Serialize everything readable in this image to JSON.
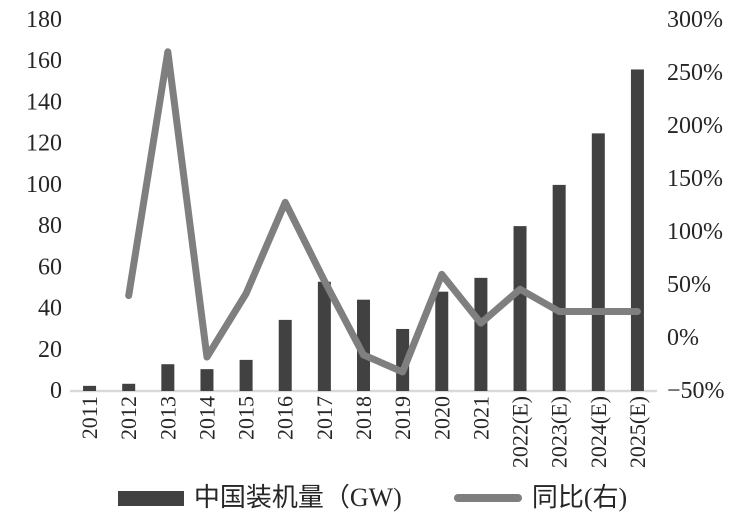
{
  "chart_data": {
    "type": "bar",
    "subtype": "combo-bar-line",
    "title": "",
    "categories": [
      "2011",
      "2012",
      "2013",
      "2014",
      "2015",
      "2016",
      "2017",
      "2018",
      "2019",
      "2020",
      "2021",
      "2022(E)",
      "2023(E)",
      "2024(E)",
      "2025(E)"
    ],
    "series": [
      {
        "name": "中国装机量（GW)",
        "type": "bar",
        "axis": "left",
        "color": "#414141",
        "values": [
          2.5,
          3.5,
          13,
          10.6,
          15.1,
          34.5,
          53,
          44.3,
          30.1,
          48.2,
          54.9,
          80,
          100,
          125,
          156
        ]
      },
      {
        "name": "同比(右)",
        "type": "line",
        "axis": "right",
        "color": "#7f7f7f",
        "values": [
          null,
          40,
          270,
          -18,
          42,
          128,
          54,
          -16,
          -32,
          60,
          14,
          46,
          25,
          25,
          25
        ]
      }
    ],
    "left_axis": {
      "min": 0,
      "max": 180,
      "step": 20,
      "suffix": "",
      "ticks": [
        "180",
        "160",
        "140",
        "120",
        "100",
        "80",
        "60",
        "40",
        "20",
        "0"
      ]
    },
    "right_axis": {
      "min": -50,
      "max": 300,
      "step": 50,
      "suffix": "%",
      "ticks": [
        "300%",
        "250%",
        "200%",
        "150%",
        "100%",
        "50%",
        "0%",
        "−50%"
      ]
    },
    "grid": false,
    "legend": {
      "position": "bottom",
      "items": [
        {
          "label": "中国装机量（GW)",
          "swatch": "bar",
          "color": "#414141"
        },
        {
          "label": "同比(右)",
          "swatch": "line",
          "color": "#7f7f7f"
        }
      ]
    },
    "colors": {
      "bar": "#414141",
      "line": "#7f7f7f",
      "axis_line": "#d9d9d9",
      "text": "#262626"
    }
  }
}
